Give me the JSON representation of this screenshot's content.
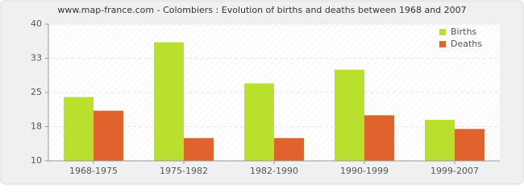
{
  "chart_data": {
    "type": "bar",
    "title": "www.map-france.com - Colombiers : Evolution of births and deaths between 1968 and 2007",
    "categories": [
      "1968-1975",
      "1975-1982",
      "1982-1990",
      "1990-1999",
      "1999-2007"
    ],
    "series": [
      {
        "name": "Births",
        "color": "#b8e02c",
        "values": [
          24,
          36,
          27,
          30,
          19
        ]
      },
      {
        "name": "Deaths",
        "color": "#e0622d",
        "values": [
          21,
          15,
          15,
          20,
          17
        ]
      }
    ],
    "ylim": [
      10,
      40
    ],
    "yticks": [
      10,
      {
        "value": 17.5,
        "label": "18"
      },
      25,
      {
        "value": 32.5,
        "label": "33"
      },
      40
    ],
    "grid": true,
    "legend": "top-right"
  }
}
